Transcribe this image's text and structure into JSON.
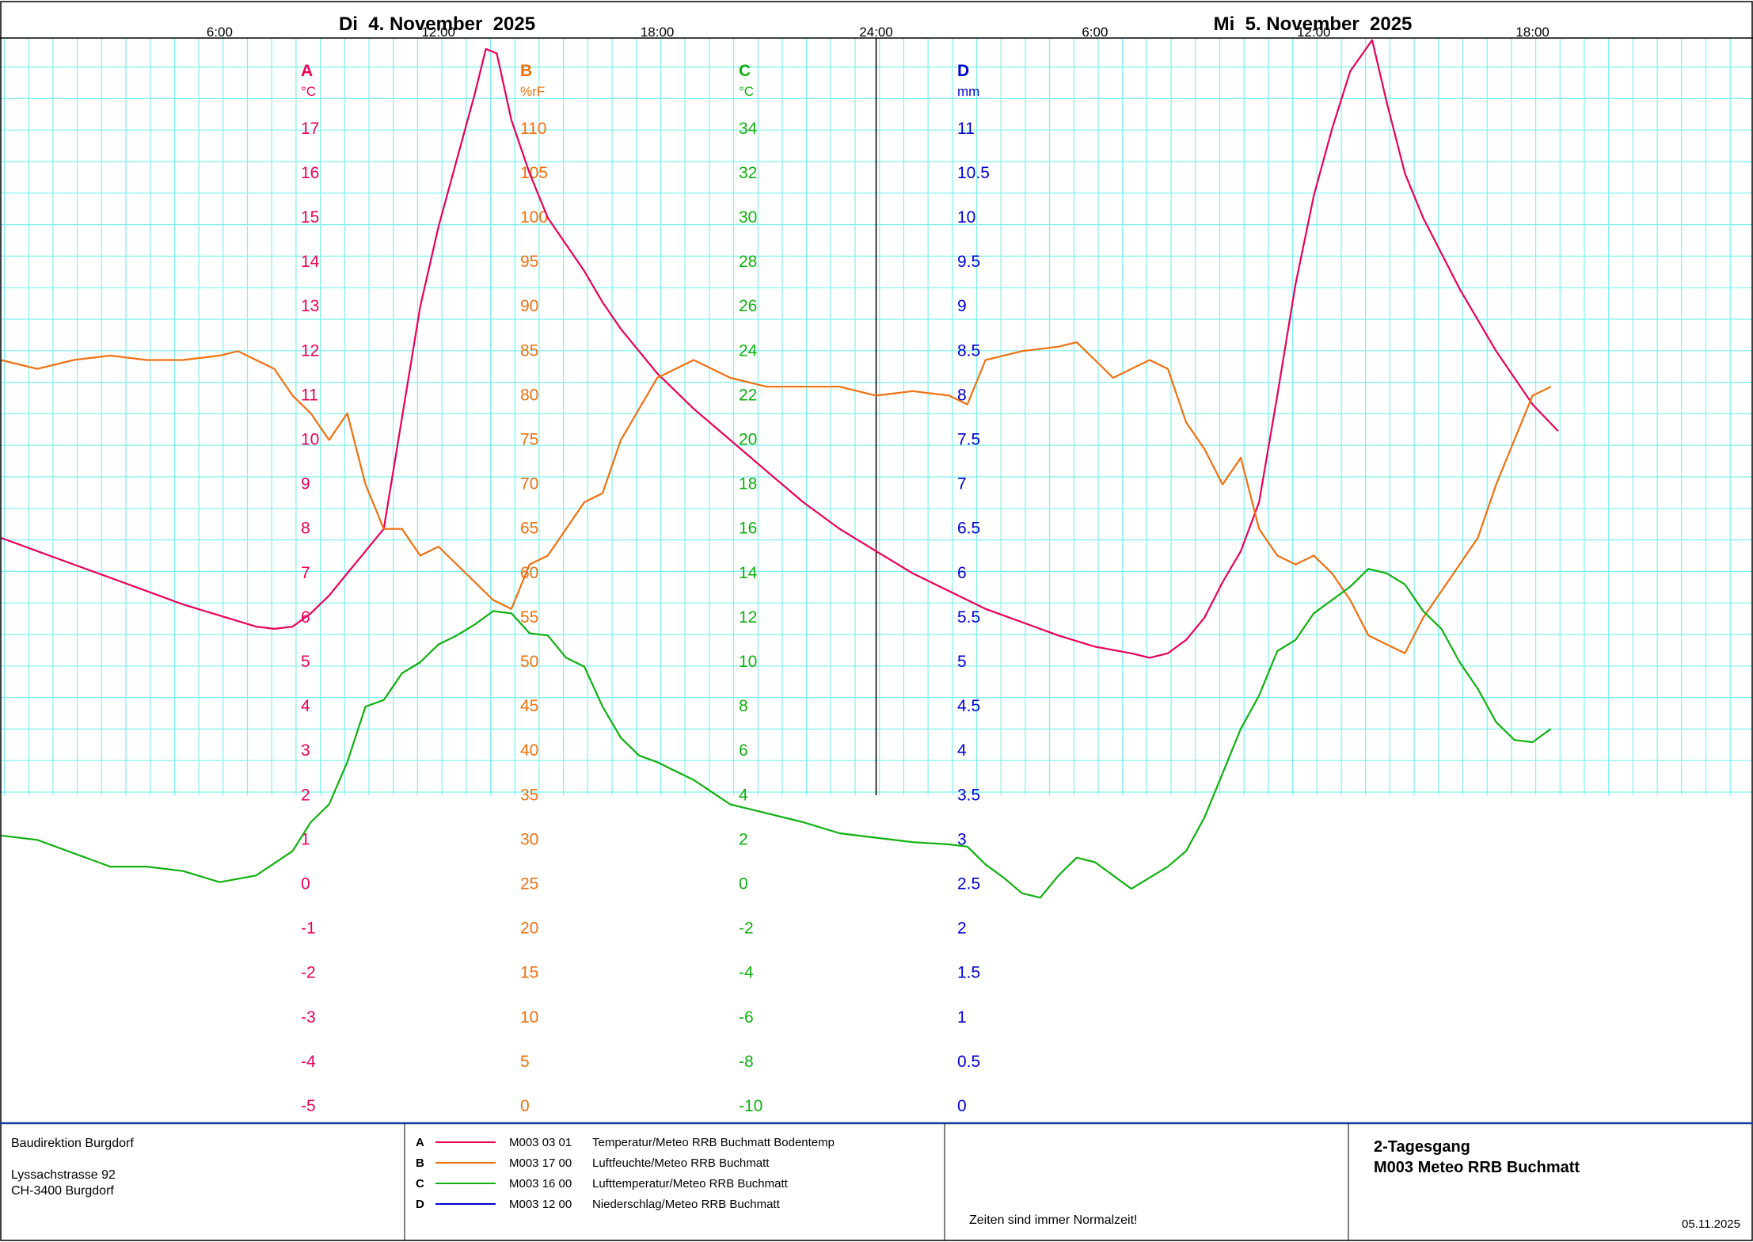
{
  "header": {
    "day1_title": "Di  4. November  2025",
    "day2_title": "Mi  5. November  2025",
    "time_labels": [
      "6:00",
      "12:00",
      "18:00",
      "24:00",
      "6:00",
      "12:00",
      "18:00"
    ]
  },
  "axes": [
    {
      "letter": "A",
      "unit": "°C",
      "color": "#e8005a",
      "ticks": [
        "17",
        "16",
        "15",
        "14",
        "13",
        "12",
        "11",
        "10",
        "9",
        "8",
        "7",
        "6",
        "5",
        "4",
        "3",
        "2",
        "1",
        "0",
        "-1",
        "-2",
        "-3",
        "-4",
        "-5"
      ]
    },
    {
      "letter": "B",
      "unit": "%rF",
      "color": "#f07010",
      "ticks": [
        "110",
        "105",
        "100",
        "95",
        "90",
        "85",
        "80",
        "75",
        "70",
        "65",
        "60",
        "55",
        "50",
        "45",
        "40",
        "35",
        "30",
        "25",
        "20",
        "15",
        "10",
        "5",
        "0"
      ]
    },
    {
      "letter": "C",
      "unit": "°C",
      "color": "#10b010",
      "ticks": [
        "34",
        "32",
        "30",
        "28",
        "26",
        "24",
        "22",
        "20",
        "18",
        "16",
        "14",
        "12",
        "10",
        "8",
        "6",
        "4",
        "2",
        "0",
        "-2",
        "-4",
        "-6",
        "-8",
        "-10"
      ]
    },
    {
      "letter": "D",
      "unit": "mm",
      "color": "#0000d0",
      "ticks": [
        "11",
        "10.5",
        "10",
        "9.5",
        "9",
        "8.5",
        "8",
        "7.5",
        "7",
        "6.5",
        "6",
        "5.5",
        "5",
        "4.5",
        "4",
        "3.5",
        "3",
        "2.5",
        "2",
        "1.5",
        "1",
        "0.5",
        "0"
      ]
    }
  ],
  "footer": {
    "org_name": "Baudirektion Burgdorf",
    "street": "Lyssachstrasse 92",
    "city": "CH-3400 Burgdorf",
    "legend": [
      {
        "letter": "A",
        "code": "M003 03 01",
        "name": "Temperatur/Meteo RRB Buchmatt Bodentemp",
        "color": "#e8005a"
      },
      {
        "letter": "B",
        "code": "M003 17 00",
        "name": "Luftfeuchte/Meteo RRB Buchmatt",
        "color": "#f07010"
      },
      {
        "letter": "C",
        "code": "M003 16 00",
        "name": "Lufttemperatur/Meteo RRB Buchmatt",
        "color": "#10b010"
      },
      {
        "letter": "D",
        "code": "M003 12 00",
        "name": "Niederschlag/Meteo RRB Buchmatt",
        "color": "#0000d0"
      }
    ],
    "note": "Zeiten sind immer Normalzeit!",
    "report_title_1": "2-Tagesgang",
    "report_title_2": "M003 Meteo RRB Buchmatt",
    "date": "05.11.2025"
  },
  "chart_data": {
    "type": "line",
    "x_unit": "hours since 4 Nov 2025 00:00",
    "xlim": [
      0,
      48
    ],
    "grid": true,
    "series": [
      {
        "name": "Temperatur/Meteo RRB Buchmatt Bodentemp",
        "axis": "A",
        "ylim": [
          -5,
          19
        ],
        "color": "#e8005a",
        "points": [
          [
            0,
            7.8
          ],
          [
            1,
            7.5
          ],
          [
            2,
            7.2
          ],
          [
            3,
            6.9
          ],
          [
            4,
            6.6
          ],
          [
            5,
            6.3
          ],
          [
            6,
            6.05
          ],
          [
            7,
            5.8
          ],
          [
            7.5,
            5.75
          ],
          [
            8,
            5.8
          ],
          [
            8.5,
            6.1
          ],
          [
            9,
            6.5
          ],
          [
            9.5,
            7.0
          ],
          [
            10,
            7.5
          ],
          [
            10.5,
            8.0
          ],
          [
            11,
            10.5
          ],
          [
            11.5,
            13.0
          ],
          [
            12,
            14.8
          ],
          [
            12.5,
            16.3
          ],
          [
            13,
            17.8
          ],
          [
            13.3,
            18.8
          ],
          [
            13.6,
            18.7
          ],
          [
            14,
            17.2
          ],
          [
            14.5,
            16.0
          ],
          [
            15,
            15.0
          ],
          [
            15.5,
            14.4
          ],
          [
            16,
            13.8
          ],
          [
            16.5,
            13.1
          ],
          [
            17,
            12.5
          ],
          [
            18,
            11.5
          ],
          [
            19,
            10.7
          ],
          [
            20,
            10.0
          ],
          [
            21,
            9.3
          ],
          [
            22,
            8.6
          ],
          [
            23,
            8.0
          ],
          [
            24,
            7.5
          ],
          [
            25,
            7.0
          ],
          [
            26,
            6.6
          ],
          [
            27,
            6.2
          ],
          [
            28,
            5.9
          ],
          [
            29,
            5.6
          ],
          [
            30,
            5.35
          ],
          [
            31,
            5.2
          ],
          [
            31.5,
            5.1
          ],
          [
            32,
            5.2
          ],
          [
            32.5,
            5.5
          ],
          [
            33,
            6.0
          ],
          [
            33.5,
            6.8
          ],
          [
            34,
            7.5
          ],
          [
            34.5,
            8.6
          ],
          [
            35,
            11.0
          ],
          [
            35.5,
            13.5
          ],
          [
            36,
            15.5
          ],
          [
            36.5,
            17.0
          ],
          [
            37,
            18.3
          ],
          [
            37.6,
            19.0
          ],
          [
            38,
            17.6
          ],
          [
            38.5,
            16.0
          ],
          [
            39,
            15.0
          ],
          [
            39.5,
            14.2
          ],
          [
            40,
            13.4
          ],
          [
            41,
            12.0
          ],
          [
            42,
            10.8
          ],
          [
            42.7,
            10.2
          ]
        ]
      },
      {
        "name": "Luftfeuchte/Meteo RRB Buchmatt",
        "axis": "B",
        "ylim": [
          0,
          120
        ],
        "color": "#f07010",
        "points": [
          [
            0,
            84
          ],
          [
            1,
            83
          ],
          [
            2,
            84
          ],
          [
            3,
            84.5
          ],
          [
            4,
            84
          ],
          [
            5,
            84
          ],
          [
            6,
            84.5
          ],
          [
            6.5,
            85
          ],
          [
            7,
            84
          ],
          [
            7.5,
            83
          ],
          [
            8,
            80
          ],
          [
            8.5,
            78
          ],
          [
            9,
            75
          ],
          [
            9.5,
            78
          ],
          [
            10,
            70
          ],
          [
            10.5,
            65
          ],
          [
            11,
            65
          ],
          [
            11.5,
            62
          ],
          [
            12,
            63
          ],
          [
            12.5,
            61
          ],
          [
            13,
            59
          ],
          [
            13.5,
            57
          ],
          [
            14,
            56
          ],
          [
            14.5,
            61
          ],
          [
            15,
            62
          ],
          [
            16,
            68
          ],
          [
            16.5,
            69
          ],
          [
            17,
            75
          ],
          [
            18,
            82
          ],
          [
            19,
            84
          ],
          [
            20,
            82
          ],
          [
            21,
            81
          ],
          [
            22,
            81
          ],
          [
            23,
            81
          ],
          [
            24,
            80
          ],
          [
            25,
            80.5
          ],
          [
            26,
            80
          ],
          [
            26.5,
            79
          ],
          [
            27,
            84
          ],
          [
            28,
            85
          ],
          [
            29,
            85.5
          ],
          [
            29.5,
            86
          ],
          [
            30,
            84
          ],
          [
            30.5,
            82
          ],
          [
            31,
            83
          ],
          [
            31.5,
            84
          ],
          [
            32,
            83
          ],
          [
            32.5,
            77
          ],
          [
            33,
            74
          ],
          [
            33.5,
            70
          ],
          [
            34,
            73
          ],
          [
            34.5,
            65
          ],
          [
            35,
            62
          ],
          [
            35.5,
            61
          ],
          [
            36,
            62
          ],
          [
            36.5,
            60
          ],
          [
            37,
            57
          ],
          [
            37.5,
            53
          ],
          [
            38,
            52
          ],
          [
            38.5,
            51
          ],
          [
            39,
            55
          ],
          [
            39.5,
            58
          ],
          [
            40,
            61
          ],
          [
            40.5,
            64
          ],
          [
            41,
            70
          ],
          [
            41.5,
            75
          ],
          [
            42,
            80
          ],
          [
            42.5,
            81
          ]
        ]
      },
      {
        "name": "Lufttemperatur/Meteo RRB Buchmatt",
        "axis": "C",
        "ylim": [
          -10,
          38
        ],
        "color": "#10b010",
        "points": [
          [
            0,
            2.2
          ],
          [
            1,
            2.0
          ],
          [
            2,
            1.4
          ],
          [
            3,
            0.8
          ],
          [
            4,
            0.8
          ],
          [
            5,
            0.6
          ],
          [
            6,
            0.1
          ],
          [
            7,
            0.4
          ],
          [
            8,
            1.5
          ],
          [
            8.5,
            2.8
          ],
          [
            9,
            3.6
          ],
          [
            9.5,
            5.5
          ],
          [
            10,
            8.0
          ],
          [
            10.5,
            8.3
          ],
          [
            11,
            9.5
          ],
          [
            11.5,
            10.0
          ],
          [
            12,
            10.8
          ],
          [
            12.5,
            11.2
          ],
          [
            13,
            11.7
          ],
          [
            13.5,
            12.3
          ],
          [
            14,
            12.2
          ],
          [
            14.5,
            11.3
          ],
          [
            15,
            11.2
          ],
          [
            15.5,
            10.2
          ],
          [
            16,
            9.8
          ],
          [
            16.5,
            8.0
          ],
          [
            17,
            6.6
          ],
          [
            17.5,
            5.8
          ],
          [
            18,
            5.5
          ],
          [
            19,
            4.7
          ],
          [
            20,
            3.6
          ],
          [
            21,
            3.2
          ],
          [
            22,
            2.8
          ],
          [
            23,
            2.3
          ],
          [
            24,
            2.1
          ],
          [
            25,
            1.9
          ],
          [
            26,
            1.8
          ],
          [
            26.5,
            1.7
          ],
          [
            27,
            0.9
          ],
          [
            27.5,
            0.3
          ],
          [
            28,
            -0.4
          ],
          [
            28.5,
            -0.6
          ],
          [
            29,
            0.4
          ],
          [
            29.5,
            1.2
          ],
          [
            30,
            1.0
          ],
          [
            31,
            -0.2
          ],
          [
            32,
            0.8
          ],
          [
            32.5,
            1.5
          ],
          [
            33,
            3.0
          ],
          [
            33.5,
            5.0
          ],
          [
            34,
            7.0
          ],
          [
            34.5,
            8.5
          ],
          [
            35,
            10.5
          ],
          [
            35.5,
            11.0
          ],
          [
            36,
            12.2
          ],
          [
            36.5,
            12.8
          ],
          [
            37,
            13.4
          ],
          [
            37.5,
            14.2
          ],
          [
            38,
            14.0
          ],
          [
            38.5,
            13.5
          ],
          [
            39,
            12.3
          ],
          [
            39.5,
            11.5
          ],
          [
            40,
            10.0
          ],
          [
            40.5,
            8.8
          ],
          [
            41,
            7.3
          ],
          [
            41.5,
            6.5
          ],
          [
            42,
            6.4
          ],
          [
            42.5,
            7.0
          ]
        ]
      },
      {
        "name": "Niederschlag/Meteo RRB Buchmatt",
        "axis": "D",
        "ylim": [
          0,
          12
        ],
        "color": "#0000d0",
        "points": []
      }
    ]
  }
}
